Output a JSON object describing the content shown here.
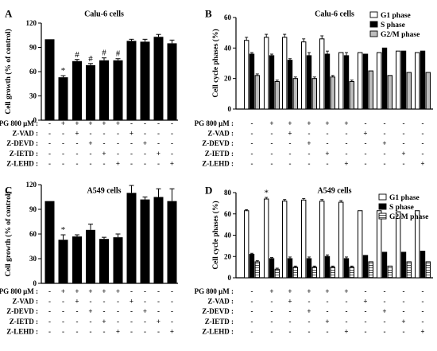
{
  "figure": {
    "panels": [
      {
        "label": "A",
        "title": "Calu-6 cells",
        "ylabel": "Cell growth (% of control)"
      },
      {
        "label": "B",
        "title": "Calu-6 cells",
        "ylabel": "Cell cycle phases (%)"
      },
      {
        "label": "C",
        "title": "A549 cells",
        "ylabel": "Cell growth (% of control)"
      },
      {
        "label": "D",
        "title": "A549 cells",
        "ylabel": "Cell cycle phases (%)"
      }
    ],
    "treatment_rows": [
      "PG 800 μM :",
      "Z-VAD :",
      "Z-DEVD :",
      "Z-IETD :",
      "Z-LEHD :"
    ],
    "treatment_matrix": [
      [
        "-",
        "+",
        "+",
        "+",
        "+",
        "+",
        "-",
        "-",
        "-",
        "-"
      ],
      [
        "-",
        "-",
        "+",
        "-",
        "-",
        "-",
        "+",
        "-",
        "-",
        "-"
      ],
      [
        "-",
        "-",
        "-",
        "+",
        "-",
        "-",
        "-",
        "+",
        "-",
        "-"
      ],
      [
        "-",
        "-",
        "-",
        "-",
        "+",
        "-",
        "-",
        "-",
        "+",
        "-"
      ],
      [
        "-",
        "-",
        "-",
        "-",
        "-",
        "+",
        "-",
        "-",
        "-",
        "+"
      ]
    ],
    "legend": [
      "G1 phase",
      "S phase",
      "G2/M phase"
    ],
    "colors": {
      "bar": "#000000",
      "g1": "#ffffff",
      "s": "#000000",
      "g2m": "#bdbdbd"
    }
  },
  "chart_data": [
    {
      "type": "bar",
      "title": "Calu-6 cells",
      "ylabel": "Cell growth (% of control)",
      "ylim": [
        0,
        120
      ],
      "yticks": [
        0,
        30,
        60,
        90,
        120
      ],
      "values": [
        100,
        53,
        73,
        68,
        74,
        74,
        98,
        97,
        103,
        95
      ],
      "errors": [
        0,
        2,
        2,
        2,
        3,
        2,
        2,
        3,
        3,
        4
      ],
      "annotations": [
        "",
        "*",
        "#",
        "#",
        "#",
        "#",
        "",
        "",
        "",
        ""
      ]
    },
    {
      "type": "bar",
      "title": "Calu-6 cells",
      "ylabel": "Cell cycle phases (%)",
      "ylim": [
        0,
        60
      ],
      "yticks": [
        0,
        20,
        40,
        60
      ],
      "series": [
        {
          "name": "G1 phase",
          "values": [
            45,
            47,
            47,
            44,
            46,
            37,
            37,
            37,
            38,
            37
          ]
        },
        {
          "name": "S phase",
          "values": [
            36,
            35,
            32,
            35,
            36,
            35,
            36,
            40,
            38,
            38
          ]
        },
        {
          "name": "G2/M phase",
          "values": [
            22,
            18,
            20,
            20,
            21,
            18,
            25,
            22,
            24,
            24
          ]
        }
      ],
      "errors": [
        [
          2,
          2,
          2,
          2,
          2,
          0.5,
          0.5,
          0.5,
          0.5,
          0.5
        ],
        [
          1,
          1,
          1,
          2,
          2,
          2,
          0.5,
          0.5,
          0.5,
          0.5
        ],
        [
          1,
          1,
          1,
          1,
          1,
          1,
          0.5,
          0.5,
          0.5,
          0.5
        ]
      ],
      "legend_position": "top-right"
    },
    {
      "type": "bar",
      "title": "A549 cells",
      "ylabel": "Cell growth (% of control)",
      "ylim": [
        0,
        120
      ],
      "yticks": [
        0,
        30,
        60,
        90,
        120
      ],
      "values": [
        100,
        53,
        57,
        65,
        54,
        56,
        110,
        102,
        105,
        100
      ],
      "errors": [
        0,
        6,
        2,
        7,
        2,
        4,
        9,
        3,
        10,
        15
      ],
      "annotations": [
        "",
        "*",
        "",
        "",
        "",
        "",
        "",
        "",
        "",
        ""
      ]
    },
    {
      "type": "bar",
      "title": "A549 cells",
      "ylabel": "Cell cycle phases (%)",
      "ylim": [
        0,
        80
      ],
      "yticks": [
        0,
        20,
        40,
        60,
        80
      ],
      "series": [
        {
          "name": "G1 phase",
          "values": [
            63,
            74,
            72,
            73,
            72,
            71,
            63,
            63,
            62,
            63
          ]
        },
        {
          "name": "S phase",
          "values": [
            22,
            18,
            18,
            18,
            20,
            18,
            21,
            24,
            24,
            25
          ]
        },
        {
          "name": "G2/M phase",
          "values": [
            15,
            8,
            10,
            10,
            10,
            10,
            15,
            11,
            15,
            15
          ]
        }
      ],
      "errors": [
        [
          1,
          1.5,
          1.5,
          1.5,
          1.5,
          1.5,
          0.5,
          0.5,
          0.5,
          0.5
        ],
        [
          1,
          1,
          1.5,
          1.5,
          1.5,
          1.5,
          0.5,
          0.5,
          0.5,
          0.5
        ],
        [
          1,
          1,
          1,
          1,
          1,
          1,
          0.5,
          0.5,
          0.5,
          0.5
        ]
      ],
      "annotations": [
        "",
        "*",
        "",
        "",
        "",
        "",
        "",
        "",
        "",
        ""
      ],
      "legend_position": "top-right"
    }
  ]
}
